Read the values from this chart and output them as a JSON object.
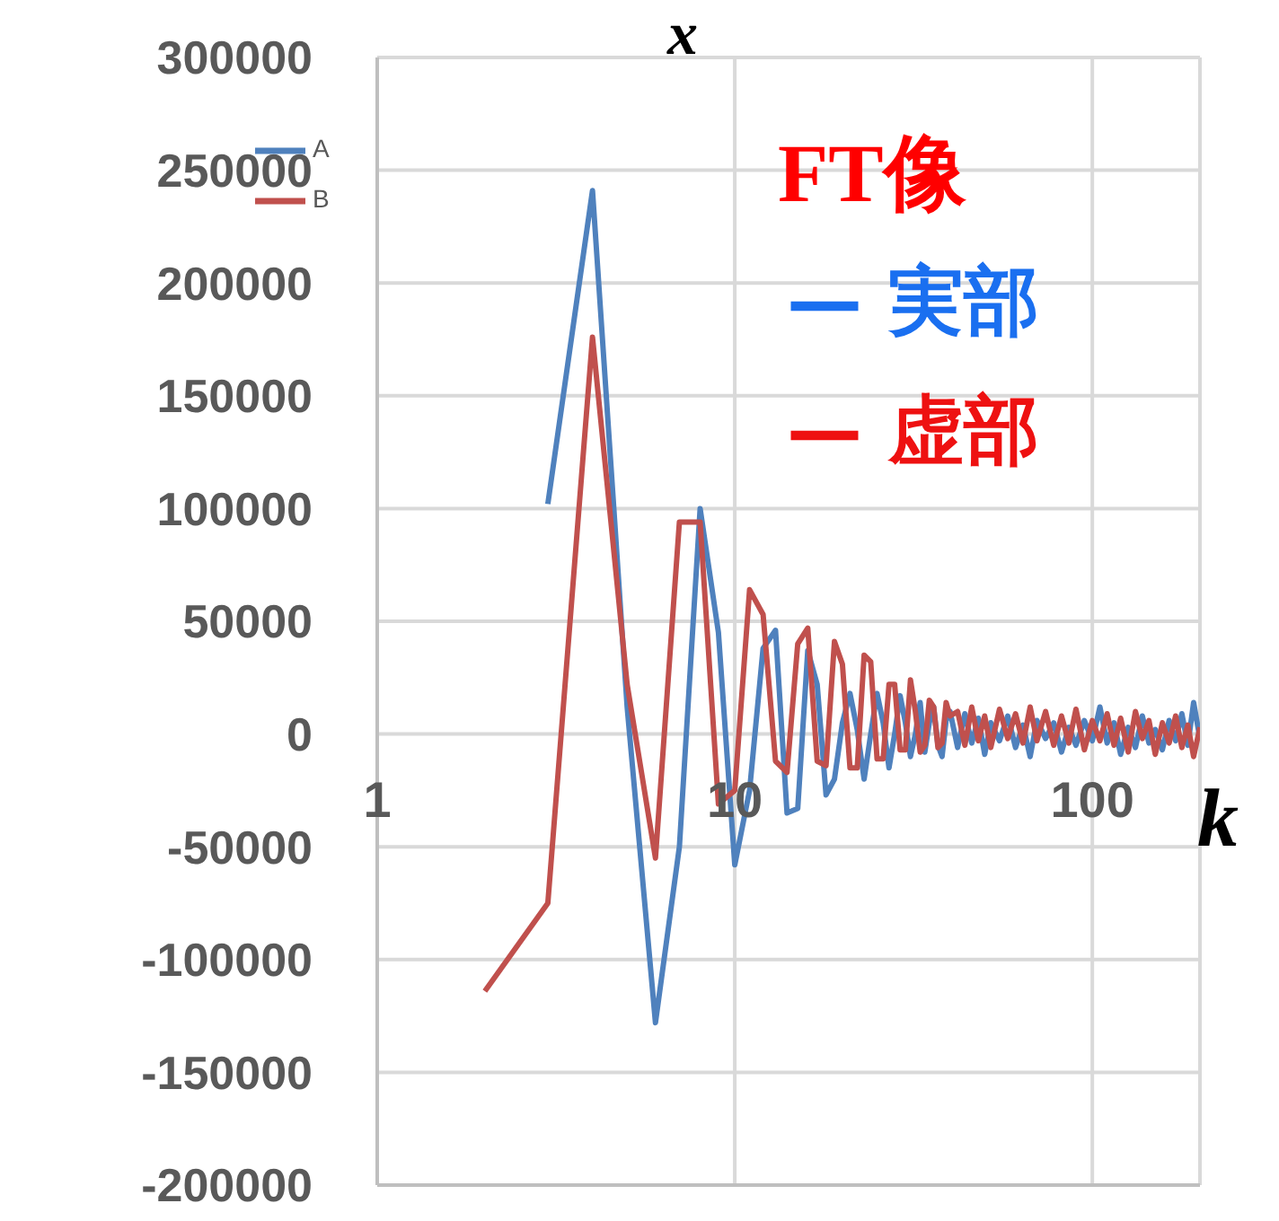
{
  "chart_data": {
    "type": "line",
    "title": "x",
    "xlabel": "k",
    "annotations": [
      "FT像",
      "— 実部",
      "— 虚部"
    ],
    "x": [
      2,
      3,
      4,
      5,
      6,
      7,
      8,
      9,
      10,
      11,
      12,
      13,
      14,
      15,
      16,
      17,
      18,
      19,
      20,
      21,
      22,
      23,
      24,
      25,
      26,
      27,
      28,
      29,
      30,
      31,
      32,
      33,
      34,
      35,
      36,
      37,
      38,
      39,
      40,
      42,
      44,
      46,
      48,
      50,
      52,
      55,
      58,
      61,
      64,
      67,
      70,
      74,
      78,
      82,
      86,
      90,
      95,
      100,
      105,
      110,
      115,
      120,
      126,
      132,
      138,
      144,
      150,
      157,
      164,
      171,
      178,
      185,
      192,
      200
    ],
    "series": [
      {
        "name": "A",
        "color": "#4f81bd",
        "values": [
          null,
          102000,
          241000,
          12000,
          -128000,
          -50000,
          100000,
          45000,
          -58000,
          -25000,
          38000,
          46000,
          -35000,
          -33000,
          37000,
          22000,
          -27000,
          -20000,
          5000,
          18000,
          2000,
          -20000,
          0,
          18000,
          5000,
          -15000,
          0,
          17000,
          5000,
          -10000,
          0,
          14000,
          -8000,
          5000,
          12000,
          -5000,
          -10000,
          6000,
          10000,
          -6000,
          9000,
          -4000,
          7000,
          -9000,
          5000,
          -3000,
          8000,
          -6000,
          4000,
          -10000,
          6000,
          -2000,
          5000,
          -8000,
          3000,
          -5000,
          6000,
          -3000,
          12000,
          -4000,
          5000,
          -9000,
          3000,
          -6000,
          8000,
          -4000,
          2000,
          -7000,
          6000,
          -3000,
          9000,
          -5000,
          14000,
          -2000
        ]
      },
      {
        "name": "B",
        "color": "#c0504d",
        "values": [
          -114000,
          -75000,
          176000,
          22000,
          -55000,
          94000,
          94000,
          -31000,
          -25000,
          64000,
          53000,
          -12000,
          -17000,
          40000,
          47000,
          -12000,
          -14000,
          41000,
          31000,
          -15000,
          -15000,
          35000,
          32000,
          -11000,
          -11000,
          22000,
          22000,
          -7000,
          -7000,
          24000,
          10000,
          -8000,
          -5000,
          15000,
          12000,
          -6000,
          -4000,
          14000,
          8000,
          10000,
          -5000,
          12000,
          -3000,
          8000,
          -6000,
          11000,
          -2000,
          9000,
          -4000,
          12000,
          -3000,
          10000,
          -5000,
          8000,
          -4000,
          11000,
          -7000,
          6000,
          -3000,
          9000,
          -5000,
          7000,
          -8000,
          10000,
          -2000,
          6000,
          -9000,
          5000,
          -4000,
          8000,
          -6000,
          4000,
          -10000,
          3000
        ]
      }
    ],
    "log": "x",
    "xlim": [
      1,
      200
    ],
    "xticks": [
      1,
      10,
      100
    ],
    "ylim": [
      -200000,
      300000
    ],
    "yticks": [
      -200000,
      -150000,
      -100000,
      -50000,
      0,
      50000,
      100000,
      150000,
      200000,
      250000,
      300000
    ],
    "grid": true,
    "legend": "top left",
    "line_style": "solid",
    "marker": "none"
  }
}
